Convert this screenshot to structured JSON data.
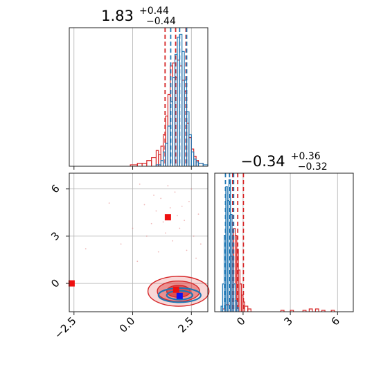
{
  "colors": {
    "red": "#d62728",
    "blue": "#1f77b4",
    "marker_red": "#ee1111",
    "marker_blue": "#1111ee",
    "grid": "#b0b0b0"
  },
  "chart_data": [
    {
      "type": "histogram",
      "panel": "top-left",
      "parameter_index": 0,
      "title": {
        "median": "1.83",
        "plus": "+0.44",
        "minus": "−0.44"
      },
      "xlim": [
        -2.7,
        3.2
      ],
      "x_ticks": [
        -2.5,
        0.0,
        2.5
      ],
      "x_tick_labels_shown": false,
      "y_ticks_shown": false,
      "grid": true,
      "series": [
        {
          "color": "#d62728",
          "bins": [
            [
              -0.1,
              0.2,
              0.01
            ],
            [
              0.2,
              0.4,
              0.02
            ],
            [
              0.4,
              0.6,
              0.02
            ],
            [
              0.6,
              0.8,
              0.04
            ],
            [
              0.8,
              1.0,
              0.06
            ],
            [
              1.0,
              1.1,
              0.11
            ],
            [
              1.1,
              1.2,
              0.08
            ],
            [
              1.2,
              1.3,
              0.14
            ],
            [
              1.3,
              1.4,
              0.22
            ],
            [
              1.4,
              1.5,
              0.35
            ],
            [
              1.5,
              1.6,
              0.5
            ],
            [
              1.6,
              1.7,
              0.7
            ],
            [
              1.7,
              1.8,
              0.72
            ],
            [
              1.8,
              1.9,
              0.62
            ],
            [
              1.9,
              2.0,
              0.74
            ],
            [
              2.0,
              2.1,
              0.7
            ],
            [
              2.1,
              2.2,
              0.6
            ],
            [
              2.2,
              2.3,
              0.52
            ],
            [
              2.3,
              2.4,
              0.3
            ],
            [
              2.4,
              2.5,
              0.2
            ],
            [
              2.5,
              2.6,
              0.12
            ],
            [
              2.6,
              2.7,
              0.07
            ],
            [
              2.7,
              2.8,
              0.04
            ],
            [
              2.8,
              3.0,
              0.02
            ]
          ],
          "quantile_lines": [
            1.38,
            1.83,
            2.27
          ]
        },
        {
          "color": "#1f77b4",
          "bins": [
            [
              1.0,
              1.2,
              0.01
            ],
            [
              1.2,
              1.3,
              0.04
            ],
            [
              1.3,
              1.4,
              0.1
            ],
            [
              1.4,
              1.5,
              0.16
            ],
            [
              1.5,
              1.6,
              0.28
            ],
            [
              1.6,
              1.7,
              0.45
            ],
            [
              1.7,
              1.8,
              0.62
            ],
            [
              1.8,
              1.9,
              0.78
            ],
            [
              1.9,
              2.0,
              0.9
            ],
            [
              2.0,
              2.1,
              0.92
            ],
            [
              2.1,
              2.2,
              0.8
            ],
            [
              2.2,
              2.3,
              0.6
            ],
            [
              2.3,
              2.4,
              0.38
            ],
            [
              2.4,
              2.5,
              0.22
            ],
            [
              2.5,
              2.6,
              0.1
            ],
            [
              2.6,
              2.7,
              0.05
            ],
            [
              2.7,
              2.8,
              0.03
            ],
            [
              2.8,
              3.0,
              0.02
            ],
            [
              3.0,
              3.2,
              0.01
            ]
          ],
          "quantile_lines": [
            1.62,
            2.0,
            2.3
          ]
        }
      ]
    },
    {
      "type": "scatter",
      "panel": "bottom-left",
      "xlim": [
        -2.7,
        3.2
      ],
      "ylim": [
        -1.8,
        7.0
      ],
      "x_ticks": [
        -2.5,
        0.0,
        2.5
      ],
      "x_tick_labels": [
        "−2.5",
        "0.0",
        "2.5"
      ],
      "y_ticks": [
        0,
        3,
        6
      ],
      "y_tick_labels": [
        "0",
        "3",
        "6"
      ],
      "grid": true,
      "contours": [
        {
          "color": "#d62728",
          "levels": [
            {
              "cx": 1.95,
              "cy": -0.5,
              "rx": 1.3,
              "ry": 0.95
            },
            {
              "cx": 1.95,
              "cy": -0.5,
              "rx": 0.9,
              "ry": 0.65
            },
            {
              "cx": 1.95,
              "cy": -0.5,
              "rx": 0.5,
              "ry": 0.38
            }
          ]
        },
        {
          "color": "#1f77b4",
          "levels": [
            {
              "cx": 2.0,
              "cy": -0.75,
              "rx": 0.9,
              "ry": 0.45
            },
            {
              "cx": 2.0,
              "cy": -0.75,
              "rx": 0.55,
              "ry": 0.28
            }
          ]
        }
      ],
      "markers": [
        {
          "x": 1.5,
          "y": 4.2,
          "color": "#ee1111"
        },
        {
          "x": -2.6,
          "y": 0.0,
          "color": "#ee1111"
        },
        {
          "x": 1.85,
          "y": -0.4,
          "color": "#ee1111"
        },
        {
          "x": 2.0,
          "y": -0.8,
          "color": "#1111ee"
        }
      ],
      "outliers": [
        [
          -2.0,
          2.2
        ],
        [
          -1.0,
          5.1
        ],
        [
          -0.5,
          2.5
        ],
        [
          0.3,
          6.3
        ],
        [
          0.5,
          5.0
        ],
        [
          0.8,
          3.8
        ],
        [
          1.0,
          4.6
        ],
        [
          1.2,
          5.4
        ],
        [
          1.4,
          3.2
        ],
        [
          1.6,
          4.8
        ],
        [
          1.8,
          5.8
        ],
        [
          2.0,
          3.5
        ],
        [
          2.2,
          4.0
        ],
        [
          2.4,
          5.2
        ],
        [
          2.6,
          3.0
        ],
        [
          2.8,
          4.4
        ],
        [
          1.1,
          2.0
        ],
        [
          2.9,
          2.5
        ],
        [
          0.6,
          3.0
        ],
        [
          2.5,
          6.0
        ],
        [
          1.9,
          4.3
        ],
        [
          0.9,
          5.6
        ],
        [
          2.7,
          1.6
        ],
        [
          0.2,
          1.4
        ],
        [
          1.3,
          3.9
        ],
        [
          2.1,
          4.9
        ],
        [
          1.7,
          2.7
        ],
        [
          0.0,
          3.5
        ],
        [
          2.3,
          2.1
        ],
        [
          1.5,
          6.2
        ]
      ]
    },
    {
      "type": "histogram",
      "panel": "bottom-right",
      "parameter_index": 1,
      "title": {
        "median": "−0.34",
        "plus": "+0.36",
        "minus": "−0.32"
      },
      "xlim": [
        -1.8,
        7.0
      ],
      "x_ticks": [
        0,
        3,
        6
      ],
      "x_tick_labels": [
        "0",
        "3",
        "6"
      ],
      "y_ticks_shown": false,
      "grid": true,
      "series": [
        {
          "color": "#d62728",
          "bins": [
            [
              -1.3,
              -1.1,
              0.02
            ],
            [
              -1.1,
              -0.9,
              0.05
            ],
            [
              -0.9,
              -0.8,
              0.14
            ],
            [
              -0.8,
              -0.7,
              0.4
            ],
            [
              -0.7,
              -0.6,
              0.55
            ],
            [
              -0.6,
              -0.5,
              0.6
            ],
            [
              -0.5,
              -0.4,
              0.55
            ],
            [
              -0.4,
              -0.3,
              0.45
            ],
            [
              -0.3,
              -0.2,
              0.3
            ],
            [
              -0.2,
              -0.1,
              0.2
            ],
            [
              -0.1,
              0.0,
              0.12
            ],
            [
              0.0,
              0.1,
              0.07
            ],
            [
              0.1,
              0.3,
              0.04
            ],
            [
              0.3,
              0.5,
              0.02
            ],
            [
              2.4,
              2.6,
              0.01
            ],
            [
              3.0,
              3.2,
              0.01
            ],
            [
              3.8,
              4.0,
              0.01
            ],
            [
              4.2,
              4.4,
              0.02
            ],
            [
              4.6,
              4.8,
              0.02
            ],
            [
              5.0,
              5.2,
              0.01
            ],
            [
              5.6,
              5.8,
              0.01
            ]
          ],
          "quantile_lines": [
            -0.66,
            -0.34,
            0.02
          ]
        },
        {
          "color": "#1f77b4",
          "bins": [
            [
              -1.4,
              -1.3,
              0.04
            ],
            [
              -1.3,
              -1.2,
              0.2
            ],
            [
              -1.2,
              -1.1,
              0.55
            ],
            [
              -1.1,
              -1.0,
              0.9
            ],
            [
              -1.0,
              -0.9,
              0.8
            ],
            [
              -0.9,
              -0.8,
              0.95
            ],
            [
              -0.8,
              -0.7,
              0.7
            ],
            [
              -0.7,
              -0.6,
              0.4
            ],
            [
              -0.6,
              -0.5,
              0.2
            ],
            [
              -0.5,
              -0.4,
              0.08
            ],
            [
              -0.4,
              -0.3,
              0.03
            ]
          ],
          "quantile_lines": [
            -1.12,
            -0.86,
            -0.6
          ]
        }
      ]
    }
  ]
}
